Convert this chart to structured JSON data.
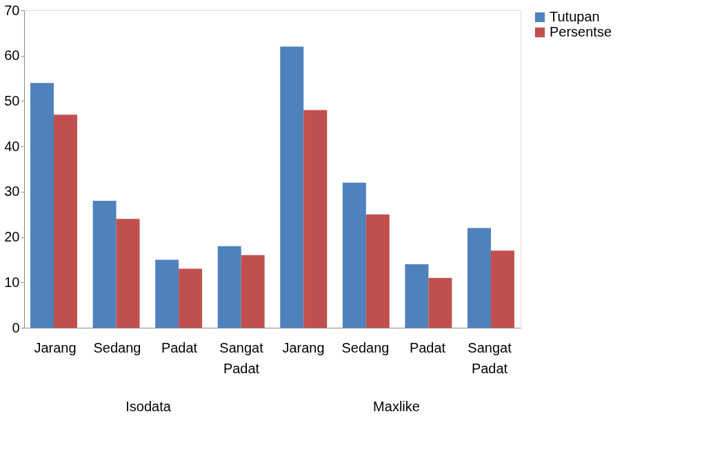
{
  "chart_data": {
    "type": "bar",
    "categories": [
      "Jarang",
      "Sedang",
      "Padat",
      "Sangat Padat",
      "Jarang",
      "Sedang",
      "Padat",
      "Sangat Padat"
    ],
    "series": [
      {
        "name": "Tutupan",
        "color": "#4f81bd",
        "values": [
          54,
          28,
          15,
          18,
          62,
          32,
          14,
          22
        ]
      },
      {
        "name": "Persentse",
        "color": "#c0504d",
        "values": [
          47,
          24,
          13,
          16,
          48,
          25,
          11,
          17
        ]
      }
    ],
    "annotations": [
      "Isodata",
      "Maxlike"
    ],
    "ylim": [
      0,
      70
    ],
    "yticks": [
      0,
      10,
      20,
      30,
      40,
      50,
      60,
      70
    ],
    "grid": false,
    "legend": "right"
  }
}
